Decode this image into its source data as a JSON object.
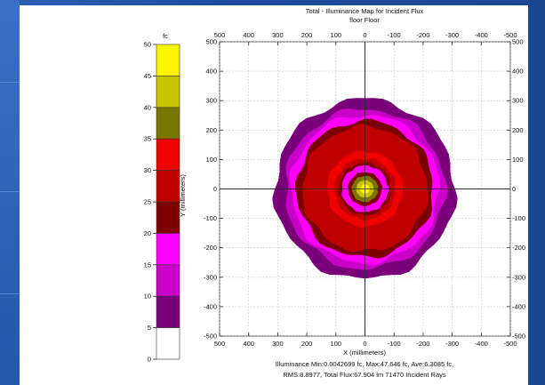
{
  "chart_data": {
    "type": "heatmap",
    "title": "Total - Illuminance Map for Incident Flux",
    "subtitle": "floor Floor",
    "colorbar": {
      "unit": "fc",
      "ticks": [
        50,
        45,
        40,
        35,
        30,
        25,
        20,
        15,
        10,
        5,
        0
      ],
      "bands": [
        {
          "from": 45,
          "to": 50,
          "color": "#f9f500"
        },
        {
          "from": 40,
          "to": 45,
          "color": "#c8c400"
        },
        {
          "from": 35,
          "to": 40,
          "color": "#7a7500"
        },
        {
          "from": 30,
          "to": 35,
          "color": "#f00000"
        },
        {
          "from": 25,
          "to": 30,
          "color": "#c00000"
        },
        {
          "from": 20,
          "to": 25,
          "color": "#7c0000"
        },
        {
          "from": 15,
          "to": 20,
          "color": "#ff00ff"
        },
        {
          "from": 10,
          "to": 15,
          "color": "#c800c8"
        },
        {
          "from": 5,
          "to": 10,
          "color": "#7a007a"
        },
        {
          "from": 0,
          "to": 5,
          "color": "#ffffff"
        }
      ]
    },
    "xlabel": "X (millimeters)",
    "ylabel": "Y (millimeters)",
    "xlim": [
      500,
      -500
    ],
    "ylim": [
      -500,
      500
    ],
    "xticks": [
      "500",
      "400",
      "300",
      "200",
      "100",
      "0",
      "-100",
      "-200",
      "-300",
      "-400",
      "-500"
    ],
    "yticks": [
      "500",
      "400",
      "300",
      "200",
      "100",
      "0",
      "-100",
      "-200",
      "-300",
      "-400",
      "-500"
    ],
    "grid": true,
    "rings": [
      {
        "outer_radius": 310,
        "level_fc": 7.5,
        "color": "#7a007a"
      },
      {
        "outer_radius": 275,
        "level_fc": 12.5,
        "color": "#c800c8"
      },
      {
        "outer_radius": 255,
        "level_fc": 17.5,
        "color": "#ff00ff"
      },
      {
        "outer_radius": 235,
        "level_fc": 22.5,
        "color": "#7c0000"
      },
      {
        "outer_radius": 215,
        "level_fc": 27.5,
        "color": "#c00000"
      },
      {
        "outer_radius": 130,
        "level_fc": 32.5,
        "color": "#f00000"
      },
      {
        "outer_radius": 105,
        "level_fc": 27.5,
        "color": "#c00000"
      },
      {
        "outer_radius": 90,
        "level_fc": 22.5,
        "color": "#7c0000"
      },
      {
        "outer_radius": 80,
        "level_fc": 17.5,
        "color": "#ff00ff"
      },
      {
        "outer_radius": 58,
        "level_fc": 22.5,
        "color": "#7c0000"
      },
      {
        "outer_radius": 45,
        "level_fc": 37.5,
        "color": "#7a7500"
      },
      {
        "outer_radius": 30,
        "level_fc": 42.5,
        "color": "#c8c400"
      },
      {
        "outer_radius": 16,
        "level_fc": 47.5,
        "color": "#f9f500"
      }
    ],
    "stats_line1": "Illuminance Min:0.0042699 fc, Max:47.646 fc, Ave:6.3085 fc,",
    "stats_line2": "RMS:8.8977, Total Flux:67.904 lm 71470 Incident Rays"
  }
}
